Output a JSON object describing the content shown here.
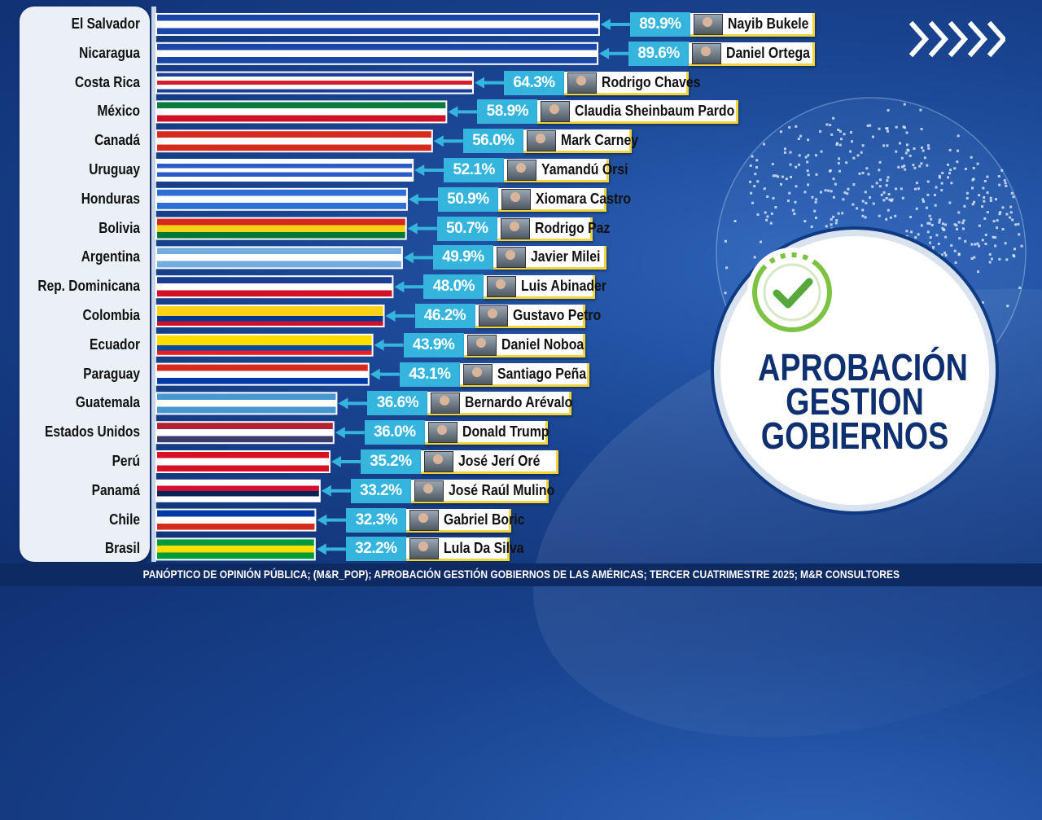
{
  "title_lines": [
    "APROBACIÓN",
    "GESTION",
    "GOBIERNOS"
  ],
  "footer": "PANÓPTICO DE OPINIÓN PÚBLICA; (M&R_POP); APROBACIÓN GESTIÓN GOBIERNOS DE LAS AMÉRICAS; TERCER CUATRIMESTRE 2025; M&R CONSULTORES",
  "icons": [
    "chevrons-icon",
    "globe-icon",
    "checkmark-icon",
    "leader-photo-icon"
  ],
  "colors": {
    "pct_box": "#35b4de",
    "name_border": "#f2d53c",
    "title": "#0e2f70"
  },
  "chart_data": {
    "type": "bar",
    "orientation": "horizontal",
    "value_unit": "%",
    "xlim": [
      0,
      100
    ],
    "categories": [
      "El Salvador",
      "Nicaragua",
      "Costa Rica",
      "México",
      "Canadá",
      "Uruguay",
      "Honduras",
      "Bolivia",
      "Argentina",
      "Rep. Dominicana",
      "Colombia",
      "Ecuador",
      "Paraguay",
      "Guatemala",
      "Estados Unidos",
      "Perú",
      "Panamá",
      "Chile",
      "Brasil"
    ],
    "values": [
      89.9,
      89.6,
      64.3,
      58.9,
      56.0,
      52.1,
      50.9,
      50.7,
      49.9,
      48.0,
      46.2,
      43.9,
      43.1,
      36.6,
      36.0,
      35.2,
      33.2,
      32.3,
      32.2
    ],
    "value_labels": [
      "89.9%",
      "89.6%",
      "64.3%",
      "58.9%",
      "56.0%",
      "52.1%",
      "50.9%",
      "50.7%",
      "49.9%",
      "48.0%",
      "46.2%",
      "43.9%",
      "43.1%",
      "36.6%",
      "36.0%",
      "35.2%",
      "33.2%",
      "32.3%",
      "32.2%"
    ],
    "leaders": [
      "Nayib Bukele",
      "Daniel Ortega",
      "Rodrigo Chaves",
      "Claudia Sheinbaum Pardo",
      "Mark Carney",
      "Yamandú Orsi",
      "Xiomara Castro",
      "Rodrigo Paz",
      "Javier Milei",
      "Luis Abinader",
      "Gustavo Petro",
      "Daniel Noboa",
      "Santiago Peña",
      "Bernardo Arévalo",
      "Donald Trump",
      "José Jerí Oré",
      "José Raúl Mulino",
      "Gabriel Boric",
      "Lula Da Silva"
    ],
    "flag_colors": [
      [
        "#1a46a8",
        "#ffffff",
        "#1a46a8"
      ],
      [
        "#1a46a8",
        "#ffffff",
        "#1a46a8"
      ],
      [
        "#1a3d9a",
        "#ffffff",
        "#d21f2b",
        "#ffffff",
        "#1a3d9a"
      ],
      [
        "#0a7a3e",
        "#ffffff",
        "#ce1126"
      ],
      [
        "#d52b1e",
        "#ffffff",
        "#d52b1e"
      ],
      [
        "#ffffff",
        "#2a5cc8",
        "#ffffff",
        "#2a5cc8",
        "#ffffff"
      ],
      [
        "#2d6fd6",
        "#ffffff",
        "#2d6fd6"
      ],
      [
        "#d52b1e",
        "#f7d117",
        "#007934"
      ],
      [
        "#74acdf",
        "#ffffff",
        "#74acdf"
      ],
      [
        "#1a3d8f",
        "#ffffff",
        "#ce1126"
      ],
      [
        "#fcd116",
        "#fcd116",
        "#003893",
        "#ce1126"
      ],
      [
        "#ffdd00",
        "#ffdd00",
        "#034ea2",
        "#ed1c24"
      ],
      [
        "#d52b1e",
        "#ffffff",
        "#0038a8"
      ],
      [
        "#4997d0",
        "#ffffff",
        "#4997d0"
      ],
      [
        "#b22234",
        "#ffffff",
        "#3c3b6e"
      ],
      [
        "#d91023",
        "#ffffff",
        "#d91023"
      ],
      [
        "#ffffff",
        "#d21034",
        "#072357",
        "#ffffff"
      ],
      [
        "#0039a6",
        "#ffffff",
        "#d52b1e"
      ],
      [
        "#009c3b",
        "#ffdf00",
        "#009c3b"
      ]
    ]
  }
}
